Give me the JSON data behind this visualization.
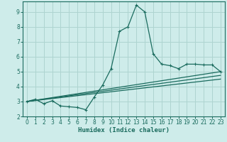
{
  "xlabel": "Humidex (Indice chaleur)",
  "background_color": "#ceecea",
  "grid_color": "#aed4d0",
  "line_color": "#1a6b5e",
  "xlim": [
    -0.5,
    23.5
  ],
  "ylim": [
    2,
    9.7
  ],
  "xticks": [
    0,
    1,
    2,
    3,
    4,
    5,
    6,
    7,
    8,
    9,
    10,
    11,
    12,
    13,
    14,
    15,
    16,
    17,
    18,
    19,
    20,
    21,
    22,
    23
  ],
  "yticks": [
    2,
    3,
    4,
    5,
    6,
    7,
    8,
    9
  ],
  "line1_x": [
    0,
    1,
    2,
    3,
    4,
    5,
    6,
    7,
    8,
    9,
    10,
    11,
    12,
    13,
    14,
    15,
    16,
    17,
    18,
    19,
    20,
    21,
    22,
    23
  ],
  "line1_y": [
    3.0,
    3.15,
    2.85,
    3.05,
    2.7,
    2.65,
    2.6,
    2.45,
    3.3,
    4.1,
    5.2,
    7.7,
    8.0,
    9.45,
    9.0,
    6.2,
    5.5,
    5.4,
    5.2,
    5.5,
    5.5,
    5.45,
    5.45,
    5.0
  ],
  "line2_x": [
    0,
    23
  ],
  "line2_y": [
    3.0,
    5.0
  ],
  "line3_x": [
    0,
    23
  ],
  "line3_y": [
    3.0,
    4.75
  ],
  "line4_x": [
    0,
    23
  ],
  "line4_y": [
    3.0,
    4.5
  ]
}
